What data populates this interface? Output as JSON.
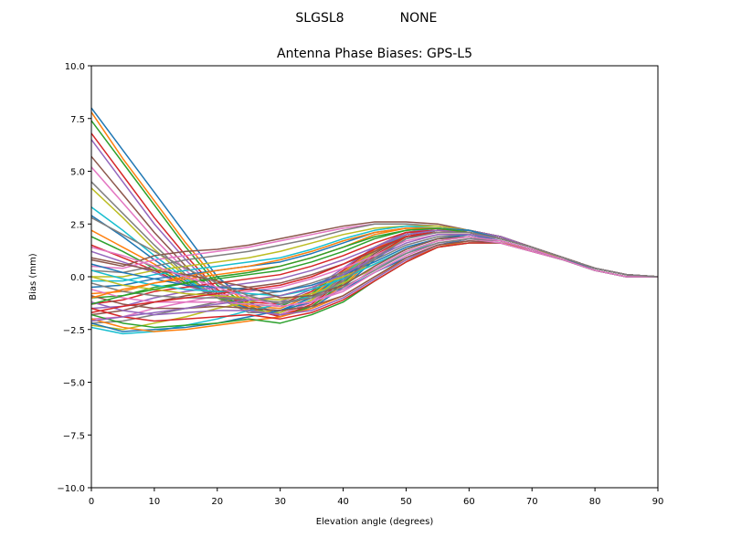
{
  "header": {
    "station": "SLGSL8",
    "radome": "NONE"
  },
  "chart_data": {
    "type": "line",
    "title": "Antenna Phase Biases: GPS-L5",
    "xlabel": "Elevation angle (degrees)",
    "ylabel": "Bias (mm)",
    "xlim": [
      0,
      90
    ],
    "ylim": [
      -10,
      10
    ],
    "xticks": [
      0,
      10,
      20,
      30,
      40,
      50,
      60,
      70,
      80,
      90
    ],
    "yticks": [
      -10,
      -7.5,
      -5,
      -2.5,
      0,
      2.5,
      5,
      7.5,
      10
    ],
    "xtick_labels": [
      "0",
      "10",
      "20",
      "30",
      "40",
      "50",
      "60",
      "70",
      "80",
      "90"
    ],
    "ytick_labels": [
      "−10.0",
      "−7.5",
      "−5.0",
      "−2.5",
      "0.0",
      "2.5",
      "5.0",
      "7.5",
      "10.0"
    ],
    "grid": false,
    "legend": "none",
    "colors": [
      "#1f77b4",
      "#ff7f0e",
      "#2ca02c",
      "#d62728",
      "#9467bd",
      "#8c564b",
      "#e377c2",
      "#7f7f7f",
      "#bcbd22",
      "#17becf"
    ],
    "x": [
      0,
      5,
      10,
      15,
      20,
      25,
      30,
      35,
      40,
      45,
      50,
      55,
      60,
      65,
      70,
      75,
      80,
      85,
      90
    ],
    "series": [
      {
        "values": [
          8.0,
          6.0,
          4.0,
          2.0,
          0.0,
          -1.2,
          -1.8,
          -1.5,
          -0.5,
          0.8,
          1.8,
          2.2,
          2.2,
          1.9,
          1.4,
          0.9,
          0.4,
          0.1,
          0.0
        ]
      },
      {
        "values": [
          7.8,
          5.6,
          3.6,
          1.6,
          -0.2,
          -1.3,
          -1.8,
          -1.4,
          -0.4,
          0.9,
          1.9,
          2.2,
          2.2,
          1.9,
          1.4,
          0.9,
          0.4,
          0.1,
          0.0
        ]
      },
      {
        "values": [
          7.4,
          5.4,
          3.4,
          1.4,
          -0.4,
          -1.4,
          -1.9,
          -1.4,
          -0.3,
          1.0,
          1.9,
          2.2,
          2.2,
          1.9,
          1.4,
          0.9,
          0.4,
          0.1,
          0.0
        ]
      },
      {
        "values": [
          6.8,
          4.8,
          2.8,
          1.0,
          -0.6,
          -1.5,
          -1.9,
          -1.3,
          -0.2,
          1.0,
          1.9,
          2.2,
          2.2,
          1.9,
          1.4,
          0.9,
          0.4,
          0.1,
          0.0
        ]
      },
      {
        "values": [
          6.5,
          4.5,
          2.5,
          0.8,
          -0.7,
          -1.6,
          -1.8,
          -1.2,
          -0.1,
          1.1,
          2.0,
          2.2,
          2.2,
          1.9,
          1.4,
          0.9,
          0.4,
          0.1,
          0.0
        ]
      },
      {
        "values": [
          5.7,
          3.9,
          2.1,
          0.5,
          -0.8,
          -1.6,
          -1.8,
          -1.2,
          -0.1,
          1.1,
          2.0,
          2.2,
          2.2,
          1.9,
          1.4,
          0.9,
          0.4,
          0.1,
          0.0
        ]
      },
      {
        "values": [
          5.2,
          3.5,
          1.8,
          0.3,
          -0.9,
          -1.6,
          -1.8,
          -1.2,
          0.0,
          1.2,
          2.0,
          2.2,
          2.2,
          1.9,
          1.4,
          0.9,
          0.4,
          0.1,
          0.0
        ]
      },
      {
        "values": [
          4.5,
          3.0,
          1.5,
          0.1,
          -1.0,
          -1.7,
          -1.7,
          -1.1,
          0.0,
          1.2,
          2.0,
          2.2,
          2.2,
          1.9,
          1.4,
          0.9,
          0.4,
          0.1,
          0.0
        ]
      },
      {
        "values": [
          4.2,
          2.8,
          1.3,
          0.0,
          -1.0,
          -1.6,
          -1.7,
          -1.1,
          0.1,
          1.2,
          2.0,
          2.2,
          2.2,
          1.9,
          1.4,
          0.9,
          0.4,
          0.1,
          0.0
        ]
      },
      {
        "values": [
          3.3,
          2.2,
          1.0,
          -0.1,
          -1.0,
          -1.5,
          -1.6,
          -1.0,
          0.1,
          1.3,
          2.0,
          2.2,
          2.2,
          1.9,
          1.4,
          0.9,
          0.4,
          0.1,
          0.0
        ]
      },
      {
        "values": [
          2.9,
          1.9,
          0.8,
          -0.2,
          -1.0,
          -1.5,
          -1.6,
          -1.0,
          0.2,
          1.3,
          2.1,
          2.2,
          2.2,
          1.9,
          1.4,
          0.9,
          0.4,
          0.1,
          0.0
        ]
      },
      {
        "values": [
          2.2,
          1.4,
          0.6,
          -0.3,
          -1.0,
          -1.4,
          -1.5,
          -0.9,
          0.2,
          1.3,
          2.1,
          2.2,
          2.2,
          1.9,
          1.4,
          0.9,
          0.4,
          0.1,
          0.0
        ]
      },
      {
        "values": [
          1.9,
          1.2,
          0.4,
          -0.3,
          -1.0,
          -1.3,
          -1.4,
          -0.8,
          0.3,
          1.4,
          2.1,
          2.2,
          2.2,
          1.9,
          1.4,
          0.9,
          0.4,
          0.1,
          0.0
        ]
      },
      {
        "values": [
          1.5,
          0.9,
          0.3,
          -0.4,
          -0.9,
          -1.2,
          -1.3,
          -0.7,
          0.3,
          1.4,
          2.1,
          2.2,
          2.2,
          1.9,
          1.4,
          0.9,
          0.4,
          0.1,
          0.0
        ]
      },
      {
        "values": [
          1.2,
          0.7,
          0.2,
          -0.4,
          -0.9,
          -1.1,
          -1.2,
          -0.6,
          0.4,
          1.4,
          2.1,
          2.3,
          2.2,
          1.9,
          1.4,
          0.9,
          0.4,
          0.1,
          0.0
        ]
      },
      {
        "values": [
          0.8,
          0.5,
          1.0,
          1.2,
          1.3,
          1.5,
          1.8,
          2.1,
          2.4,
          2.6,
          2.6,
          2.5,
          2.2,
          1.8,
          1.4,
          0.9,
          0.4,
          0.1,
          0.0
        ]
      },
      {
        "values": [
          0.5,
          0.4,
          0.8,
          1.0,
          1.2,
          1.4,
          1.7,
          2.0,
          2.3,
          2.5,
          2.5,
          2.4,
          2.2,
          1.8,
          1.4,
          0.9,
          0.4,
          0.1,
          0.0
        ]
      },
      {
        "values": [
          0.3,
          0.2,
          0.5,
          0.8,
          1.0,
          1.2,
          1.5,
          1.8,
          2.2,
          2.5,
          2.5,
          2.4,
          2.2,
          1.8,
          1.4,
          0.9,
          0.4,
          0.1,
          0.0
        ]
      },
      {
        "values": [
          0.0,
          0.0,
          0.3,
          0.5,
          0.7,
          0.9,
          1.2,
          1.6,
          2.0,
          2.3,
          2.4,
          2.4,
          2.2,
          1.8,
          1.4,
          0.9,
          0.4,
          0.1,
          0.0
        ]
      },
      {
        "values": [
          -0.2,
          -0.2,
          0.1,
          0.3,
          0.5,
          0.7,
          0.9,
          1.3,
          1.8,
          2.2,
          2.4,
          2.3,
          2.2,
          1.8,
          1.4,
          0.9,
          0.4,
          0.1,
          0.0
        ]
      },
      {
        "values": [
          -0.5,
          -0.4,
          -0.1,
          0.1,
          0.3,
          0.5,
          0.7,
          1.1,
          1.6,
          2.1,
          2.3,
          2.3,
          2.2,
          1.8,
          1.4,
          0.9,
          0.4,
          0.1,
          0.0
        ]
      },
      {
        "values": [
          -0.8,
          -0.7,
          -0.3,
          -0.1,
          0.1,
          0.3,
          0.5,
          0.9,
          1.4,
          2.0,
          2.3,
          2.3,
          2.1,
          1.8,
          1.4,
          0.9,
          0.4,
          0.1,
          0.0
        ]
      },
      {
        "values": [
          -1.0,
          -0.9,
          -0.5,
          -0.3,
          -0.1,
          0.1,
          0.3,
          0.7,
          1.2,
          1.8,
          2.2,
          2.3,
          2.1,
          1.8,
          1.4,
          0.9,
          0.4,
          0.1,
          0.0
        ]
      },
      {
        "values": [
          -1.3,
          -1.1,
          -0.7,
          -0.5,
          -0.3,
          -0.1,
          0.1,
          0.5,
          1.0,
          1.6,
          2.1,
          2.2,
          2.1,
          1.8,
          1.4,
          0.9,
          0.4,
          0.1,
          0.0
        ]
      },
      {
        "values": [
          -1.5,
          -1.4,
          -1.0,
          -0.7,
          -0.5,
          -0.3,
          -0.1,
          0.3,
          0.8,
          1.4,
          2.0,
          2.2,
          2.1,
          1.8,
          1.4,
          0.9,
          0.4,
          0.1,
          0.0
        ]
      },
      {
        "values": [
          -1.8,
          -1.6,
          -1.2,
          -0.9,
          -0.7,
          -0.5,
          -0.3,
          0.1,
          0.6,
          1.2,
          1.9,
          2.1,
          2.1,
          1.8,
          1.4,
          0.9,
          0.4,
          0.1,
          0.0
        ]
      },
      {
        "values": [
          -2.0,
          -1.9,
          -1.5,
          -1.2,
          -0.9,
          -0.7,
          -0.5,
          -0.1,
          0.4,
          1.0,
          1.7,
          2.0,
          2.0,
          1.8,
          1.4,
          0.9,
          0.4,
          0.1,
          0.0
        ]
      },
      {
        "values": [
          -2.2,
          -2.1,
          -1.8,
          -1.5,
          -1.2,
          -0.9,
          -0.7,
          -0.3,
          0.2,
          0.8,
          1.5,
          1.9,
          2.0,
          1.8,
          1.4,
          0.9,
          0.4,
          0.1,
          0.0
        ]
      },
      {
        "values": [
          -2.3,
          -2.5,
          -2.2,
          -1.9,
          -1.5,
          -1.2,
          -0.9,
          -0.5,
          0.0,
          0.6,
          1.3,
          1.8,
          1.9,
          1.7,
          1.3,
          0.9,
          0.4,
          0.1,
          0.0
        ]
      },
      {
        "values": [
          -2.4,
          -2.7,
          -2.6,
          -2.3,
          -2.0,
          -1.6,
          -1.3,
          -0.9,
          -0.3,
          0.4,
          1.1,
          1.7,
          1.9,
          1.7,
          1.3,
          0.8,
          0.4,
          0.1,
          0.0
        ]
      },
      {
        "values": [
          -2.2,
          -2.6,
          -2.5,
          -2.4,
          -2.2,
          -1.9,
          -1.6,
          -1.2,
          -0.6,
          0.2,
          0.9,
          1.5,
          1.8,
          1.7,
          1.3,
          0.8,
          0.4,
          0.1,
          0.0
        ]
      },
      {
        "values": [
          -2.0,
          -2.4,
          -2.6,
          -2.5,
          -2.3,
          -2.1,
          -1.9,
          -1.5,
          -0.9,
          0.0,
          0.8,
          1.4,
          1.7,
          1.6,
          1.3,
          0.8,
          0.3,
          0.0,
          0.0
        ]
      },
      {
        "values": [
          -1.8,
          -2.2,
          -2.4,
          -2.3,
          -2.2,
          -2.0,
          -2.2,
          -1.8,
          -1.2,
          -0.2,
          0.7,
          1.4,
          1.6,
          1.6,
          1.2,
          0.8,
          0.3,
          0.0,
          0.0
        ]
      },
      {
        "values": [
          -1.5,
          -1.9,
          -2.1,
          -2.0,
          -1.9,
          -1.8,
          -2.0,
          -1.7,
          -1.1,
          -0.2,
          0.7,
          1.4,
          1.6,
          1.6,
          1.2,
          0.8,
          0.3,
          0.0,
          0.0
        ]
      },
      {
        "values": [
          -1.2,
          -1.6,
          -1.8,
          -1.7,
          -1.6,
          -1.6,
          -1.8,
          -1.6,
          -1.0,
          -0.1,
          0.8,
          1.5,
          1.7,
          1.6,
          1.2,
          0.8,
          0.3,
          0.0,
          0.0
        ]
      },
      {
        "values": [
          -0.9,
          -1.3,
          -1.5,
          -1.5,
          -1.4,
          -1.5,
          -1.6,
          -1.4,
          -0.9,
          0.0,
          0.9,
          1.5,
          1.7,
          1.6,
          1.2,
          0.8,
          0.3,
          0.0,
          0.0
        ]
      },
      {
        "values": [
          -0.6,
          -1.0,
          -1.2,
          -1.2,
          -1.2,
          -1.3,
          -1.4,
          -1.2,
          -0.7,
          0.2,
          1.0,
          1.6,
          1.8,
          1.6,
          1.2,
          0.8,
          0.3,
          0.0,
          0.0
        ]
      },
      {
        "values": [
          -0.3,
          -0.7,
          -0.9,
          -1.0,
          -1.0,
          -1.1,
          -1.2,
          -1.0,
          -0.5,
          0.3,
          1.1,
          1.6,
          1.8,
          1.7,
          1.3,
          0.8,
          0.3,
          0.0,
          0.0
        ]
      },
      {
        "values": [
          0.0,
          -0.4,
          -0.6,
          -0.8,
          -0.9,
          -1.0,
          -1.1,
          -0.8,
          -0.3,
          0.4,
          1.2,
          1.7,
          1.9,
          1.7,
          1.3,
          0.8,
          0.3,
          0.0,
          0.0
        ]
      },
      {
        "values": [
          0.3,
          -0.1,
          -0.4,
          -0.6,
          -0.7,
          -0.8,
          -0.9,
          -0.6,
          -0.1,
          0.6,
          1.3,
          1.8,
          1.9,
          1.7,
          1.3,
          0.8,
          0.3,
          0.0,
          0.0
        ]
      },
      {
        "values": [
          0.6,
          0.2,
          -0.1,
          -0.4,
          -0.5,
          -0.6,
          -0.7,
          -0.4,
          0.1,
          0.7,
          1.4,
          1.8,
          2.0,
          1.7,
          1.3,
          0.8,
          0.3,
          0.0,
          0.0
        ]
      },
      {
        "values": [
          -1.0,
          -0.6,
          -0.3,
          0.0,
          0.3,
          0.5,
          0.8,
          1.2,
          1.7,
          2.1,
          2.3,
          2.3,
          2.1,
          1.8,
          1.4,
          0.9,
          0.4,
          0.1,
          0.0
        ]
      },
      {
        "values": [
          -1.3,
          -0.9,
          -0.6,
          -0.3,
          0.0,
          0.2,
          0.5,
          0.9,
          1.4,
          1.9,
          2.2,
          2.3,
          2.1,
          1.8,
          1.4,
          0.9,
          0.4,
          0.1,
          0.0
        ]
      },
      {
        "values": [
          -1.7,
          -1.4,
          -1.2,
          -1.0,
          -0.8,
          -0.6,
          -0.4,
          0.0,
          0.6,
          1.3,
          1.9,
          2.1,
          2.1,
          1.8,
          1.4,
          0.9,
          0.4,
          0.1,
          0.0
        ]
      },
      {
        "values": [
          -2.1,
          -1.9,
          -1.7,
          -1.5,
          -1.3,
          -1.1,
          -0.9,
          -0.5,
          0.1,
          0.9,
          1.6,
          2.0,
          2.0,
          1.8,
          1.4,
          0.9,
          0.4,
          0.1,
          0.0
        ]
      },
      {
        "values": [
          0.9,
          0.6,
          0.3,
          0.1,
          -0.2,
          -0.5,
          -1.0,
          -0.9,
          -0.4,
          0.5,
          1.3,
          1.8,
          1.9,
          1.7,
          1.3,
          0.8,
          0.3,
          0.0,
          0.0
        ]
      },
      {
        "values": [
          1.4,
          1.0,
          0.5,
          0.0,
          -0.5,
          -1.0,
          -1.4,
          -1.2,
          -0.6,
          0.4,
          1.2,
          1.7,
          1.9,
          1.7,
          1.3,
          0.8,
          0.3,
          0.0,
          0.0
        ]
      },
      {
        "values": [
          2.8,
          2.0,
          1.2,
          0.4,
          -0.3,
          -0.9,
          -1.3,
          -1.0,
          -0.2,
          0.9,
          1.8,
          2.1,
          2.1,
          1.8,
          1.4,
          0.9,
          0.4,
          0.1,
          0.0
        ]
      }
    ]
  }
}
